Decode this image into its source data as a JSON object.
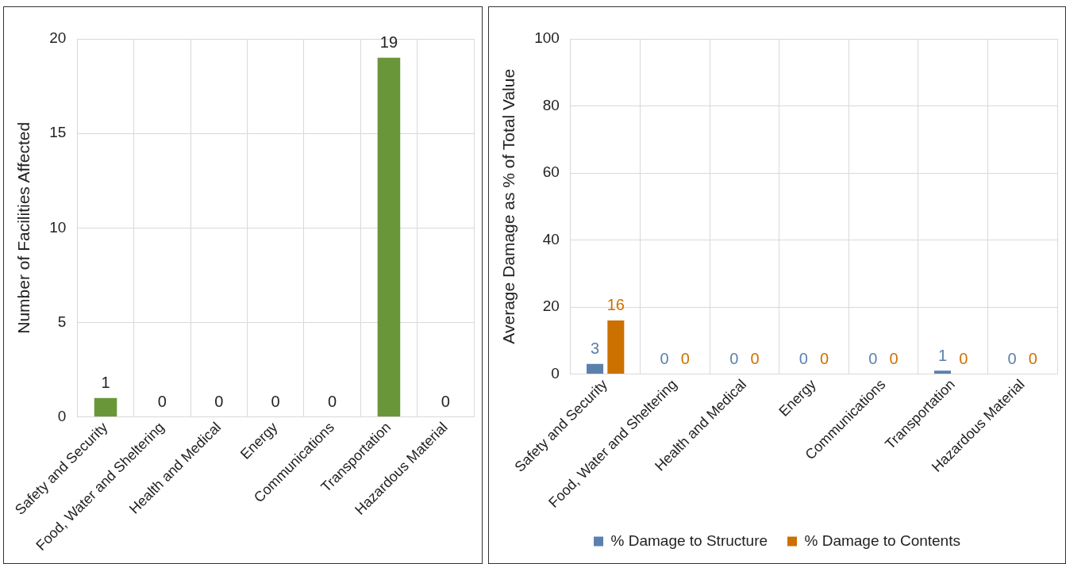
{
  "chart_data": [
    {
      "type": "bar",
      "ylabel": "Number of Facilities Affected",
      "categories": [
        "Safety and Security",
        "Food, Water and Sheltering",
        "Health and Medical",
        "Energy",
        "Communications",
        "Transportation",
        "Hazardous Material"
      ],
      "values": [
        1,
        0,
        0,
        0,
        0,
        19,
        0
      ],
      "color": "#6a963a",
      "ylim": [
        0,
        20
      ],
      "yticks": [
        0,
        5,
        10,
        15,
        20
      ],
      "grid": true,
      "data_labels": true
    },
    {
      "type": "bar",
      "ylabel": "Average Damage as % of Total Value",
      "categories": [
        "Safety and Security",
        "Food, Water and Sheltering",
        "Health and Medical",
        "Energy",
        "Communications",
        "Transportation",
        "Hazardous Material"
      ],
      "series": [
        {
          "name": "% Damage to Structure",
          "color": "#5b80ad",
          "values": [
            3,
            0,
            0,
            0,
            0,
            1,
            0
          ]
        },
        {
          "name": "% Damage to Contents",
          "color": "#cc7000",
          "values": [
            16,
            0,
            0,
            0,
            0,
            0,
            0
          ]
        }
      ],
      "ylim": [
        0,
        100
      ],
      "yticks": [
        0,
        20,
        40,
        60,
        80,
        100
      ],
      "grid": true,
      "data_labels": true,
      "legend": "bottom"
    }
  ]
}
